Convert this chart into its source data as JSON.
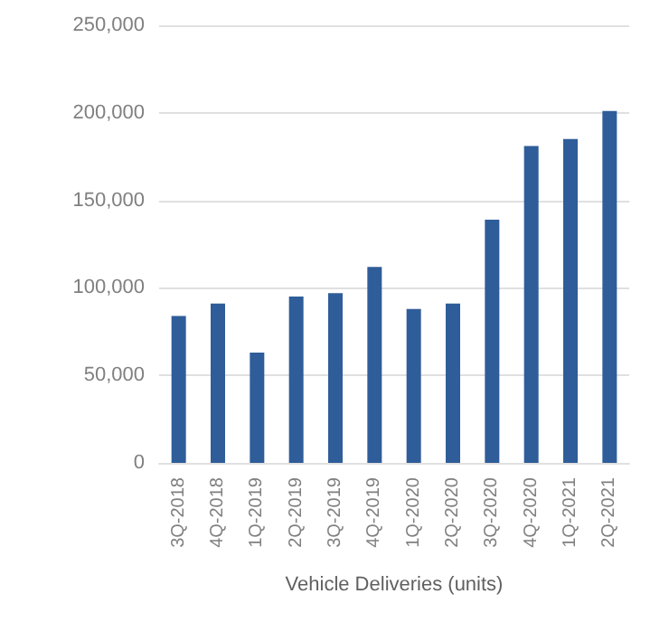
{
  "chart_data": {
    "type": "bar",
    "xlabel": "Vehicle Deliveries (units)",
    "categories": [
      "3Q-2018",
      "4Q-2018",
      "1Q-2019",
      "2Q-2019",
      "3Q-2019",
      "4Q-2019",
      "1Q-2020",
      "2Q-2020",
      "3Q-2020",
      "4Q-2020",
      "1Q-2021",
      "2Q-2021"
    ],
    "values": [
      84000,
      91000,
      63000,
      95000,
      97000,
      112000,
      88000,
      91000,
      139000,
      181000,
      185000,
      201000
    ],
    "color": "#2f5d99",
    "ylim": [
      0,
      250000
    ],
    "yticks": [
      0,
      {
        "value": 50000,
        "label": "50,000"
      },
      {
        "value": 100000,
        "label": "100,000"
      },
      {
        "value": 150000,
        "label": "150,000"
      },
      {
        "value": 200000,
        "label": "200,000"
      },
      {
        "value": 250000,
        "label": "250,000"
      }
    ],
    "grid": "y"
  }
}
